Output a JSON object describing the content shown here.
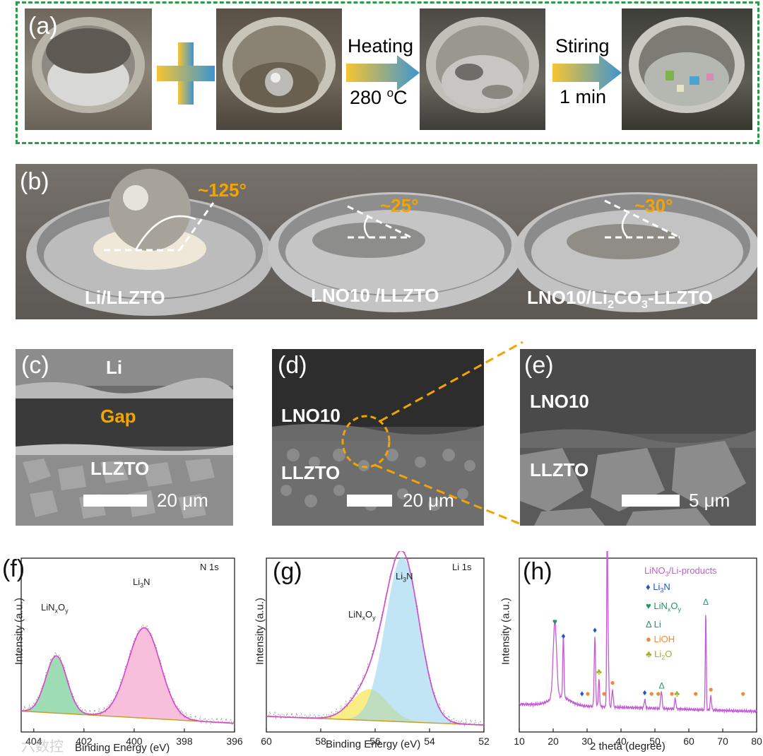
{
  "panel_a": {
    "label": "(a)",
    "step1_line1": "Heating",
    "step1_line2": "280 ",
    "step1_sup": "o",
    "step1_unit": "C",
    "step2_line1": "Stiring",
    "step2_line2": "1 min"
  },
  "panel_b": {
    "label": "(b)",
    "angle1": "~125°",
    "angle2": "~25°",
    "angle3": "~30°",
    "sample1": "Li/LLZTO",
    "sample2": "LNO10 /LLZTO",
    "sample3_pre": "LNO10/Li",
    "sample3_sub1": "2",
    "sample3_mid": "CO",
    "sample3_sub2": "3",
    "sample3_post": "-LLZTO"
  },
  "panel_c": {
    "label": "(c)",
    "top": "Li",
    "gap": "Gap",
    "bottom": "LLZTO",
    "scale": "20 μm"
  },
  "panel_d": {
    "label": "(d)",
    "top": "LNO10",
    "bottom": "LLZTO",
    "scale": "20 μm"
  },
  "panel_e": {
    "label": "(e)",
    "top": "LNO10",
    "bottom": "LLZTO",
    "scale": "5 μm"
  },
  "panel_f": {
    "label": "(f)",
    "corner": "N 1s",
    "peak1_pre": "LiN",
    "peak1_x": "x",
    "peak1_o": "O",
    "peak1_y": "y",
    "peak2_pre": "Li",
    "peak2_sub": "3",
    "peak2_post": "N",
    "xlabel": "Binding Energy (eV)",
    "ylabel": "Intensity (a.u.)",
    "ticks": [
      "404",
      "402",
      "400",
      "398",
      "396"
    ]
  },
  "panel_g": {
    "label": "(g)",
    "corner": "Li 1s",
    "peak1_pre": "LiN",
    "peak1_x": "x",
    "peak1_o": "O",
    "peak1_y": "y",
    "peak2_pre": "Li",
    "peak2_sub": "3",
    "peak2_post": "N",
    "xlabel": "Binding Energy (eV)",
    "ylabel": "Intensity (a.u.)",
    "ticks": [
      "60",
      "58",
      "56",
      "54",
      "52"
    ]
  },
  "panel_h": {
    "label": "(h)",
    "legend_title_pre": "LiNO",
    "legend_title_sub": "3",
    "legend_title_post": "/Li-products",
    "xlabel": "2 theta (degree)",
    "ylabel": "Intensity (a.u.)",
    "legend": [
      {
        "sym": "♦",
        "pre": "Li",
        "sub": "3",
        "post": "N",
        "color": "#1f57c8"
      },
      {
        "sym": "♥",
        "pre": "LiN",
        "sub": "x",
        "post": "O",
        "sub2": "y",
        "color": "#1a9a60"
      },
      {
        "sym": "Δ",
        "pre": "Li",
        "sub": "",
        "post": "",
        "color": "#1a9a60"
      },
      {
        "sym": "●",
        "pre": "LiOH",
        "sub": "",
        "post": "",
        "color": "#f08a3a"
      },
      {
        "sym": "♣",
        "pre": "Li",
        "sub": "2",
        "post": "O",
        "color": "#a8b01e"
      }
    ],
    "ticks": [
      "10",
      "20",
      "30",
      "40",
      "50",
      "60",
      "70",
      "80"
    ]
  },
  "watermark": "六数控",
  "chart_data": [
    {
      "type": "line",
      "title": "N 1s",
      "xlabel": "Binding Energy (eV)",
      "ylabel": "Intensity (a.u.)",
      "xlim": [
        404.5,
        396
      ],
      "peaks": [
        {
          "name": "LiNxOy",
          "center": 403.1,
          "height": 0.33,
          "color": "#4fbf7a"
        },
        {
          "name": "Li3N",
          "center": 399.6,
          "height": 0.52,
          "color": "#f28ac0"
        }
      ]
    },
    {
      "type": "line",
      "title": "Li 1s",
      "xlabel": "Binding Energy (eV)",
      "ylabel": "Intensity (a.u.)",
      "xlim": [
        60,
        52
      ],
      "peaks": [
        {
          "name": "LiNxOy",
          "center": 56.2,
          "height": 0.18,
          "color": "#f2e020"
        },
        {
          "name": "Li3N",
          "center": 55.0,
          "height": 0.95,
          "color": "#8fcfef"
        }
      ]
    },
    {
      "type": "line",
      "title": "LiNO3/Li-products",
      "xlabel": "2 theta (degree)",
      "ylabel": "Intensity (a.u.)",
      "xlim": [
        10,
        80
      ],
      "peaks_2theta": [
        20.5,
        23.0,
        32.3,
        33.5,
        35.9,
        36.1,
        37.5,
        47.0,
        51.9,
        56.0,
        65.0,
        66.5
      ],
      "markers": [
        {
          "x": 20.5,
          "sym": "♥"
        },
        {
          "x": 23.0,
          "sym": "♦"
        },
        {
          "x": 28.5,
          "sym": "♦"
        },
        {
          "x": 30.2,
          "sym": "●"
        },
        {
          "x": 32.3,
          "sym": "♦"
        },
        {
          "x": 33.5,
          "sym": "♣"
        },
        {
          "x": 35.0,
          "sym": "●"
        },
        {
          "x": 36.0,
          "sym": "♥"
        },
        {
          "x": 37.5,
          "sym": "●"
        },
        {
          "x": 47.0,
          "sym": "♦"
        },
        {
          "x": 49.0,
          "sym": "●"
        },
        {
          "x": 51.0,
          "sym": "●"
        },
        {
          "x": 52.0,
          "sym": "Δ"
        },
        {
          "x": 55.0,
          "sym": "●"
        },
        {
          "x": 56.5,
          "sym": "♣"
        },
        {
          "x": 62.0,
          "sym": "●"
        },
        {
          "x": 65.0,
          "sym": "Δ"
        },
        {
          "x": 66.5,
          "sym": "●"
        },
        {
          "x": 76.0,
          "sym": "●"
        }
      ]
    }
  ]
}
